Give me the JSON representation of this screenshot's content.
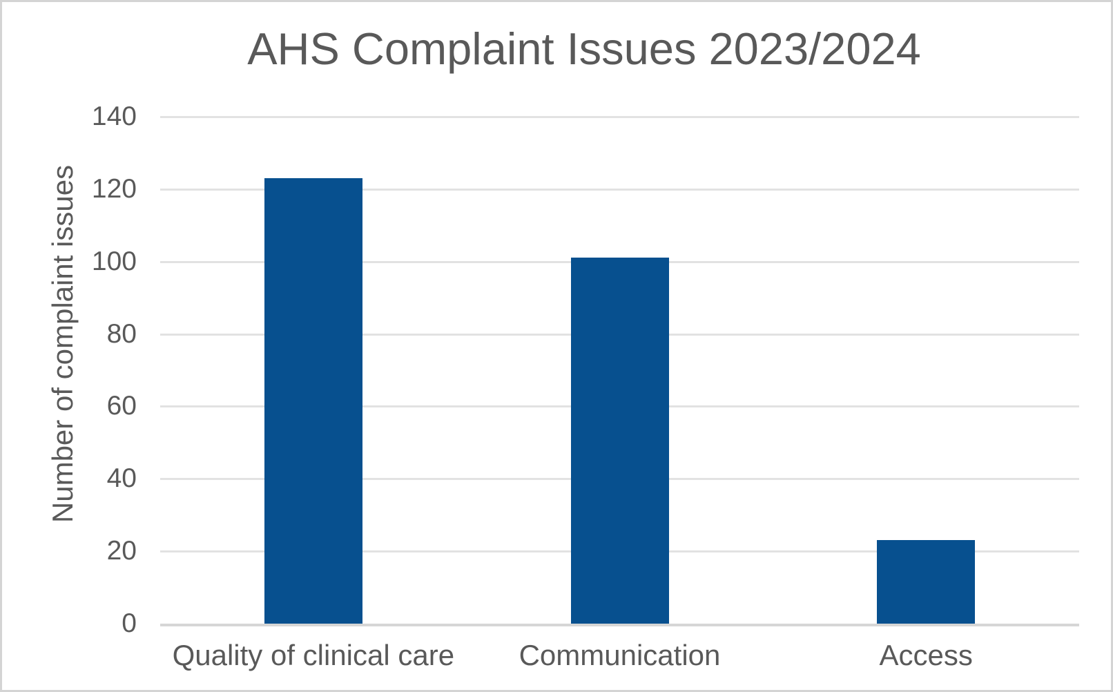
{
  "page": {
    "background": "#ffffff",
    "border_color": "#d4d4d4"
  },
  "chart_data": {
    "type": "bar",
    "title": "AHS Complaint Issues 2023/2024",
    "categories": [
      "Quality of clinical care",
      "Communication",
      "Access"
    ],
    "values": [
      123,
      101,
      23
    ],
    "xlabel": "",
    "ylabel": "Number of complaint issues",
    "ylim": [
      0,
      140
    ],
    "yticks": [
      0,
      20,
      40,
      60,
      80,
      100,
      120,
      140
    ],
    "grid": true,
    "legend": false,
    "bar_color": "#07508f",
    "text_color": "#595959",
    "gridline_color": "#e2e2e2",
    "axis_line_color": "#d6d6d6"
  }
}
